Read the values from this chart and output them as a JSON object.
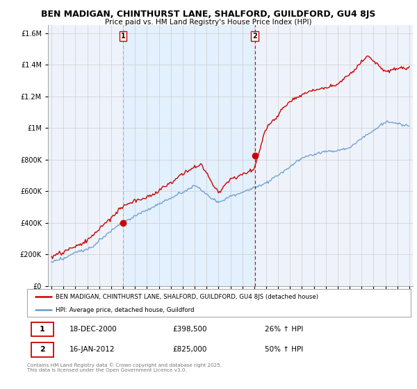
{
  "title": "BEN MADIGAN, CHINTHURST LANE, SHALFORD, GUILDFORD, GU4 8JS",
  "subtitle": "Price paid vs. HM Land Registry's House Price Index (HPI)",
  "legend_property": "BEN MADIGAN, CHINTHURST LANE, SHALFORD, GUILDFORD, GU4 8JS (detached house)",
  "legend_hpi": "HPI: Average price, detached house, Guildford",
  "sale1_date": "18-DEC-2000",
  "sale1_price": 398500,
  "sale1_pct": "26% ↑ HPI",
  "sale1_year": 2001.0,
  "sale2_date": "16-JAN-2012",
  "sale2_price": 825000,
  "sale2_pct": "50% ↑ HPI",
  "sale2_year": 2012.05,
  "copyright": "Contains HM Land Registry data © Crown copyright and database right 2025.\nThis data is licensed under the Open Government Licence v3.0.",
  "property_color": "#cc0000",
  "hpi_color": "#6699cc",
  "vline1_color": "#999999",
  "vline2_color": "#cc0000",
  "shade_color": "#ddeeff",
  "background_color": "#ffffff",
  "grid_color": "#cccccc",
  "ylim": [
    0,
    1650000
  ],
  "xlim": [
    1994.7,
    2025.3
  ],
  "yticks": [
    0,
    200000,
    400000,
    600000,
    800000,
    1000000,
    1200000,
    1400000,
    1600000
  ]
}
